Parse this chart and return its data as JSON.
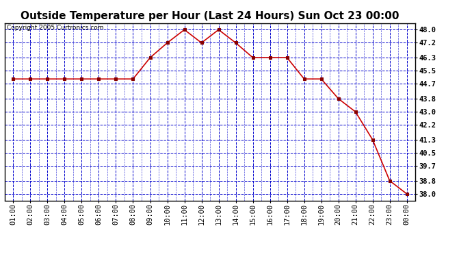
{
  "title": "Outside Temperature per Hour (Last 24 Hours) Sun Oct 23 00:00",
  "copyright": "Copyright 2005 Curtronics.com",
  "x_labels": [
    "01:00",
    "02:00",
    "03:00",
    "04:00",
    "05:00",
    "06:00",
    "07:00",
    "08:00",
    "09:00",
    "10:00",
    "11:00",
    "12:00",
    "13:00",
    "14:00",
    "15:00",
    "16:00",
    "17:00",
    "18:00",
    "19:00",
    "20:00",
    "21:00",
    "22:00",
    "23:00",
    "00:00"
  ],
  "y_values": [
    45.0,
    45.0,
    45.0,
    45.0,
    45.0,
    45.0,
    45.0,
    45.0,
    46.3,
    47.2,
    48.0,
    47.2,
    48.0,
    47.2,
    46.3,
    46.3,
    46.3,
    45.0,
    45.0,
    43.8,
    43.0,
    41.3,
    38.8,
    38.0
  ],
  "x_indices": [
    1,
    2,
    3,
    4,
    5,
    6,
    7,
    8,
    9,
    10,
    11,
    12,
    13,
    14,
    15,
    16,
    17,
    18,
    19,
    20,
    21,
    22,
    23,
    24
  ],
  "ylim": [
    37.6,
    48.4
  ],
  "yticks": [
    38.0,
    38.8,
    39.7,
    40.5,
    41.3,
    42.2,
    43.0,
    43.8,
    44.7,
    45.5,
    46.3,
    47.2,
    48.0
  ],
  "line_color": "#cc0000",
  "marker": "s",
  "marker_color": "#880000",
  "bg_color": "#ffffff",
  "plot_bg": "#ffffff",
  "grid_color": "#0000cc",
  "border_color": "#000000",
  "title_fontsize": 11,
  "tick_fontsize": 7.5,
  "copyright_fontsize": 6.5
}
